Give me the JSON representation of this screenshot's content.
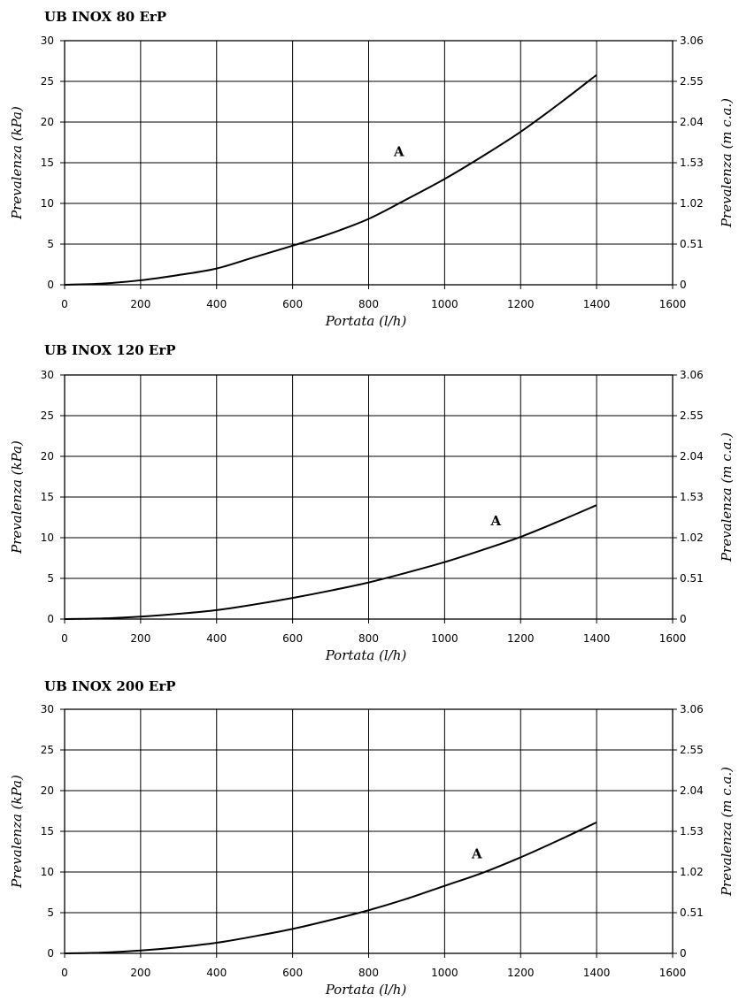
{
  "chart_data": [
    {
      "type": "line",
      "title": "UB INOX 80 ErP",
      "xlabel": "Portata (l/h)",
      "ylabel": "Prevalenza (kPa)",
      "y2label": "Prevalenza (m c.a.)",
      "xlim": [
        0,
        1600
      ],
      "ylim": [
        0,
        30
      ],
      "xticks": [
        "0",
        "200",
        "400",
        "600",
        "800",
        "1000",
        "1200",
        "1400",
        "1600"
      ],
      "yticks": [
        "0",
        "5",
        "10",
        "15",
        "20",
        "25",
        "30"
      ],
      "y2ticks": [
        "0",
        "0.51",
        "1.02",
        "1.53",
        "2.04",
        "2.55",
        "3.06"
      ],
      "grid": true,
      "series": [
        {
          "name": "A",
          "x": [
            0,
            100,
            200,
            300,
            400,
            500,
            600,
            700,
            800,
            900,
            1000,
            1100,
            1200,
            1300,
            1400
          ],
          "y": [
            0,
            0.15,
            0.55,
            1.2,
            2.0,
            3.4,
            4.8,
            6.3,
            8.1,
            10.5,
            13.0,
            15.8,
            18.8,
            22.2,
            25.8
          ]
        }
      ],
      "annotations": [
        {
          "text": "A",
          "x": 880,
          "y": 15.8
        }
      ]
    },
    {
      "type": "line",
      "title": "UB INOX 120 ErP",
      "xlabel": "Portata (l/h)",
      "ylabel": "Prevalenza (kPa)",
      "y2label": "Prevalenza (m c.a.)",
      "xlim": [
        0,
        1600
      ],
      "ylim": [
        0,
        30
      ],
      "xticks": [
        "0",
        "200",
        "400",
        "600",
        "800",
        "1000",
        "1200",
        "1400",
        "1600"
      ],
      "yticks": [
        "0",
        "5",
        "10",
        "15",
        "20",
        "25",
        "30"
      ],
      "y2ticks": [
        "0",
        "0.51",
        "1.02",
        "1.53",
        "2.04",
        "2.55",
        "3.06"
      ],
      "grid": true,
      "series": [
        {
          "name": "A",
          "x": [
            0,
            100,
            200,
            300,
            400,
            500,
            600,
            700,
            800,
            900,
            1000,
            1100,
            1200,
            1300,
            1400
          ],
          "y": [
            0,
            0.08,
            0.3,
            0.65,
            1.1,
            1.8,
            2.6,
            3.5,
            4.5,
            5.7,
            7.0,
            8.5,
            10.1,
            12.0,
            14.0
          ]
        }
      ],
      "annotations": [
        {
          "text": "A",
          "x": 1135,
          "y": 11.5
        }
      ]
    },
    {
      "type": "line",
      "title": "UB INOX 200 ErP",
      "xlabel": "Portata (l/h)",
      "ylabel": "Prevalenza (kPa)",
      "y2label": "Prevalenza (m c.a.)",
      "xlim": [
        0,
        1600
      ],
      "ylim": [
        0,
        30
      ],
      "xticks": [
        "0",
        "200",
        "400",
        "600",
        "800",
        "1000",
        "1200",
        "1400",
        "1600"
      ],
      "yticks": [
        "0",
        "5",
        "10",
        "15",
        "20",
        "25",
        "30"
      ],
      "y2ticks": [
        "0",
        "0.51",
        "1.02",
        "1.53",
        "2.04",
        "2.55",
        "3.06"
      ],
      "grid": true,
      "series": [
        {
          "name": "A",
          "x": [
            0,
            100,
            200,
            300,
            400,
            500,
            600,
            700,
            800,
            900,
            1000,
            1100,
            1200,
            1300,
            1400
          ],
          "y": [
            0,
            0.1,
            0.35,
            0.75,
            1.3,
            2.1,
            3.0,
            4.1,
            5.3,
            6.7,
            8.3,
            9.9,
            11.8,
            13.9,
            16.1
          ]
        }
      ],
      "annotations": [
        {
          "text": "A",
          "x": 1085,
          "y": 11.7
        }
      ]
    }
  ]
}
